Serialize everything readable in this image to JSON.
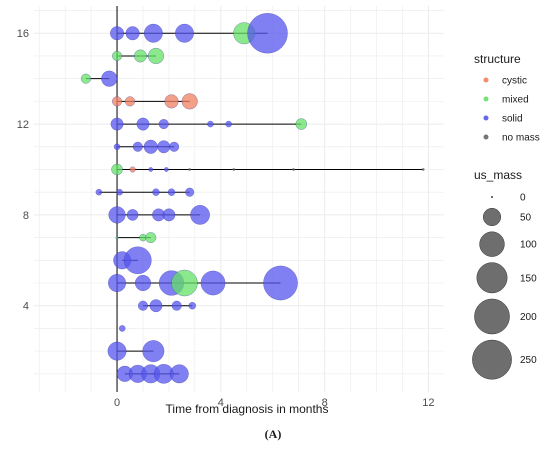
{
  "chart_data": {
    "type": "scatter",
    "xlabel": "Time from diagnosis in months",
    "ylabel": "",
    "caption": "(A)",
    "xlim": [
      -3.2,
      12.6
    ],
    "ylim": [
      0.2,
      17.2
    ],
    "x_ticks": [
      0,
      4,
      8,
      12
    ],
    "y_ticks": [
      4,
      8,
      12,
      16
    ],
    "grid": true,
    "size_max": 260,
    "colors": {
      "cystic": "#f08060",
      "mixed": "#66e066",
      "solid": "#5555ee",
      "no mass": "#666666"
    },
    "legend_structure": {
      "title": "structure",
      "items": [
        {
          "label": "cystic",
          "key": "cystic"
        },
        {
          "label": "mixed",
          "key": "mixed"
        },
        {
          "label": "solid",
          "key": "solid"
        },
        {
          "label": "no mass",
          "key": "no mass"
        }
      ]
    },
    "legend_size": {
      "title": "us_mass",
      "items": [
        {
          "label": "0",
          "value": 0
        },
        {
          "label": "50",
          "value": 50
        },
        {
          "label": "100",
          "value": 100
        },
        {
          "label": "150",
          "value": 150
        },
        {
          "label": "200",
          "value": 200
        },
        {
          "label": "250",
          "value": 250
        }
      ]
    },
    "patients": [
      {
        "y": 1,
        "points": [
          [
            0.3,
            "solid",
            40
          ],
          [
            0.8,
            "solid",
            50
          ],
          [
            1.3,
            "solid",
            55
          ],
          [
            1.8,
            "solid",
            60
          ],
          [
            2.4,
            "solid",
            55
          ]
        ]
      },
      {
        "y": 2,
        "points": [
          [
            0.0,
            "solid",
            55
          ],
          [
            1.4,
            "solid",
            75
          ]
        ]
      },
      {
        "y": 3,
        "points": [
          [
            0.2,
            "solid",
            6
          ]
        ]
      },
      {
        "y": 4,
        "points": [
          [
            1.0,
            "solid",
            15
          ],
          [
            1.5,
            "solid",
            25
          ],
          [
            2.3,
            "solid",
            15
          ],
          [
            2.9,
            "solid",
            8
          ]
        ]
      },
      {
        "y": 5,
        "points": [
          [
            0.0,
            "solid",
            50
          ],
          [
            1.0,
            "solid",
            40
          ],
          [
            2.1,
            "solid",
            100
          ],
          [
            2.6,
            "mixed",
            110
          ],
          [
            3.7,
            "solid",
            95
          ],
          [
            6.3,
            "solid",
            190
          ]
        ]
      },
      {
        "y": 6,
        "points": [
          [
            0.2,
            "solid",
            50
          ],
          [
            0.8,
            "solid",
            120
          ]
        ]
      },
      {
        "y": 7,
        "points": [
          [
            0.0,
            "mixed",
            1
          ],
          [
            1.0,
            "mixed",
            8
          ],
          [
            1.3,
            "mixed",
            18
          ]
        ]
      },
      {
        "y": 8,
        "points": [
          [
            0.0,
            "solid",
            45
          ],
          [
            0.6,
            "solid",
            20
          ],
          [
            1.6,
            "solid",
            25
          ],
          [
            2.0,
            "solid",
            25
          ],
          [
            3.2,
            "solid",
            60
          ]
        ]
      },
      {
        "y": 9,
        "points": [
          [
            -0.7,
            "solid",
            6
          ],
          [
            0.1,
            "solid",
            6
          ],
          [
            1.5,
            "solid",
            8
          ],
          [
            2.1,
            "solid",
            8
          ],
          [
            2.8,
            "solid",
            12
          ]
        ]
      },
      {
        "y": 10,
        "points": [
          [
            0.0,
            "mixed",
            20
          ],
          [
            0.6,
            "cystic",
            5
          ],
          [
            1.3,
            "solid",
            3
          ],
          [
            1.9,
            "solid",
            3
          ],
          [
            2.8,
            "no mass",
            1
          ],
          [
            4.5,
            "no mass",
            1
          ],
          [
            6.8,
            "no mass",
            1
          ],
          [
            11.8,
            "no mass",
            1
          ]
        ]
      },
      {
        "y": 11,
        "points": [
          [
            0.0,
            "solid",
            6
          ],
          [
            0.8,
            "solid",
            15
          ],
          [
            1.3,
            "solid",
            30
          ],
          [
            1.8,
            "solid",
            25
          ],
          [
            2.2,
            "solid",
            15
          ]
        ]
      },
      {
        "y": 12,
        "points": [
          [
            0.0,
            "solid",
            25
          ],
          [
            1.0,
            "solid",
            25
          ],
          [
            1.8,
            "solid",
            15
          ],
          [
            3.6,
            "solid",
            6
          ],
          [
            4.3,
            "solid",
            6
          ],
          [
            7.1,
            "mixed",
            20
          ]
        ]
      },
      {
        "y": 13,
        "points": [
          [
            0.0,
            "cystic",
            15
          ],
          [
            0.5,
            "cystic",
            15
          ],
          [
            2.1,
            "cystic",
            30
          ],
          [
            2.8,
            "cystic",
            40
          ]
        ]
      },
      {
        "y": 14,
        "points": [
          [
            -1.2,
            "mixed",
            15
          ],
          [
            -0.3,
            "solid",
            40
          ]
        ]
      },
      {
        "y": 15,
        "points": [
          [
            0.0,
            "mixed",
            15
          ],
          [
            0.9,
            "mixed",
            25
          ],
          [
            1.5,
            "mixed",
            40
          ]
        ]
      },
      {
        "y": 16,
        "points": [
          [
            0.0,
            "solid",
            30
          ],
          [
            0.6,
            "solid",
            30
          ],
          [
            1.4,
            "solid",
            55
          ],
          [
            2.6,
            "solid",
            55
          ],
          [
            4.9,
            "mixed",
            75
          ],
          [
            5.8,
            "solid",
            260
          ]
        ]
      }
    ]
  }
}
